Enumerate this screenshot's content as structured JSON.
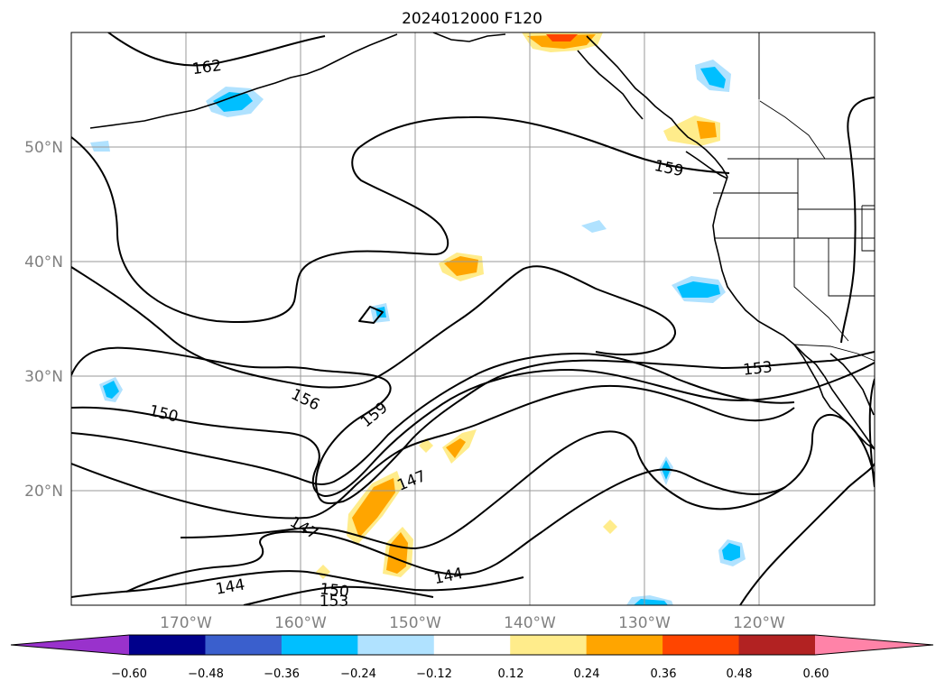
{
  "title": "2024012000 F120",
  "map": {
    "lat_labels": [
      "50°N",
      "40°N",
      "30°N",
      "20°N"
    ],
    "lon_labels": [
      "170°W",
      "160°W",
      "150°W",
      "140°W",
      "130°W",
      "120°W"
    ],
    "contour_labels": [
      "162",
      "159",
      "156",
      "159",
      "153",
      "150",
      "147",
      "147",
      "144",
      "144",
      "150",
      "153"
    ]
  },
  "colorbar": {
    "tick_labels": [
      "−0.60",
      "−0.48",
      "−0.36",
      "−0.24",
      "−0.12",
      "0.12",
      "0.24",
      "0.36",
      "0.48",
      "0.60"
    ],
    "colors": [
      "#9932cc",
      "#00008b",
      "#3a5fcd",
      "#00bfff",
      "#b0e2ff",
      "#ffffff",
      "#ffec8b",
      "#ffa500",
      "#ff4500",
      "#b22222",
      "#ff83a8"
    ]
  },
  "shading_colors": {
    "light_blue": "#b0e2ff",
    "blue": "#00bfff",
    "yellow": "#ffec8b",
    "orange": "#ffa500",
    "red_orange": "#ff4500"
  }
}
